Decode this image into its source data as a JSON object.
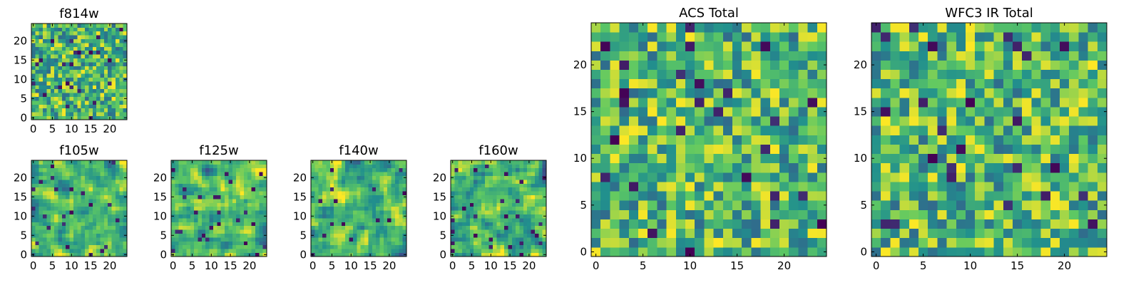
{
  "chart_data": [
    {
      "type": "heatmap",
      "title": "f814w",
      "colormap": "viridis",
      "xlim": [
        0,
        25
      ],
      "ylim": [
        0,
        25
      ],
      "xticks": [
        "0",
        "5",
        "10",
        "15",
        "20"
      ],
      "yticks": [
        "0",
        "5",
        "10",
        "15",
        "20"
      ],
      "grid_size": [
        25,
        25
      ],
      "pixel_scale": 1,
      "texture": "noisy",
      "seed": 11
    },
    {
      "type": "heatmap",
      "title": "f105w",
      "colormap": "viridis",
      "xlim": [
        0,
        25
      ],
      "ylim": [
        0,
        25
      ],
      "xticks": [
        "0",
        "5",
        "10",
        "15",
        "20"
      ],
      "yticks": [
        "0",
        "5",
        "10",
        "15",
        "20"
      ],
      "grid_size": [
        25,
        25
      ],
      "pixel_scale": 2,
      "texture": "smooth",
      "seed": 23
    },
    {
      "type": "heatmap",
      "title": "f125w",
      "colormap": "viridis",
      "xlim": [
        0,
        25
      ],
      "ylim": [
        0,
        25
      ],
      "xticks": [
        "0",
        "5",
        "10",
        "15",
        "20"
      ],
      "yticks": [
        "0",
        "5",
        "10",
        "15",
        "20"
      ],
      "grid_size": [
        25,
        25
      ],
      "pixel_scale": 2,
      "texture": "smooth",
      "seed": 37
    },
    {
      "type": "heatmap",
      "title": "f140w",
      "colormap": "viridis",
      "xlim": [
        0,
        25
      ],
      "ylim": [
        0,
        25
      ],
      "xticks": [
        "0",
        "5",
        "10",
        "15",
        "20"
      ],
      "yticks": [
        "0",
        "5",
        "10",
        "15",
        "20"
      ],
      "grid_size": [
        25,
        25
      ],
      "pixel_scale": 2,
      "texture": "smooth",
      "seed": 41
    },
    {
      "type": "heatmap",
      "title": "f160w",
      "colormap": "viridis",
      "xlim": [
        0,
        25
      ],
      "ylim": [
        0,
        25
      ],
      "xticks": [
        "0",
        "5",
        "10",
        "15",
        "20"
      ],
      "yticks": [
        "0",
        "5",
        "10",
        "15",
        "20"
      ],
      "grid_size": [
        25,
        25
      ],
      "pixel_scale": 2,
      "texture": "smooth",
      "seed": 53
    },
    {
      "type": "heatmap",
      "title": "ACS Total",
      "colormap": "viridis",
      "xlim": [
        0,
        25
      ],
      "ylim": [
        0,
        25
      ],
      "xticks": [
        "0",
        "5",
        "10",
        "15",
        "20"
      ],
      "yticks": [
        "0",
        "5",
        "10",
        "15",
        "20"
      ],
      "grid_size": [
        25,
        25
      ],
      "pixel_scale": 1,
      "texture": "noisy",
      "seed": 67
    },
    {
      "type": "heatmap",
      "title": "WFC3 IR Total",
      "colormap": "viridis",
      "xlim": [
        0,
        25
      ],
      "ylim": [
        0,
        25
      ],
      "xticks": [
        "0",
        "5",
        "10",
        "15",
        "20"
      ],
      "yticks": [
        "0",
        "5",
        "10",
        "15",
        "20"
      ],
      "grid_size": [
        25,
        25
      ],
      "pixel_scale": 1,
      "texture": "noisy",
      "seed": 79
    }
  ],
  "colors": {
    "viridis_stops": [
      "#440154",
      "#3b528b",
      "#21908d",
      "#5dc863",
      "#fde725"
    ]
  }
}
